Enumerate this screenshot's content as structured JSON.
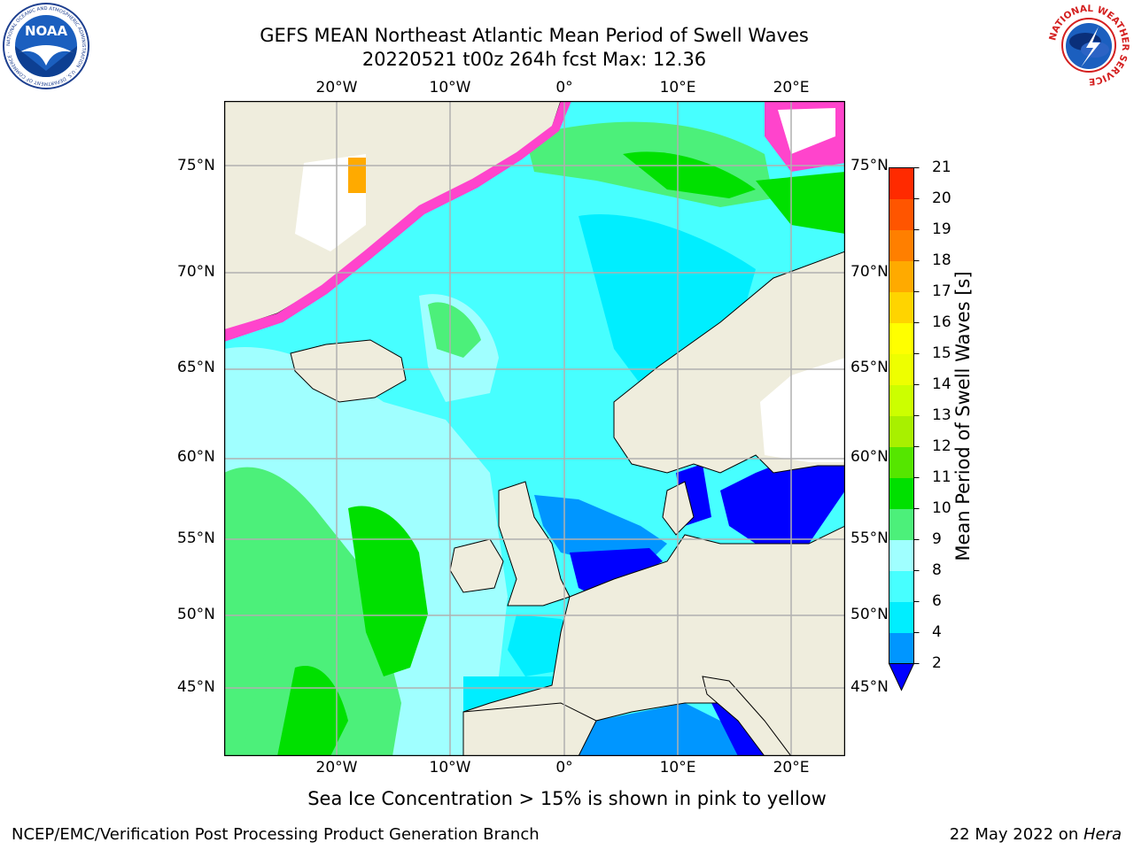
{
  "title": {
    "line1": "GEFS MEAN Northeast Atlantic Mean Period of Swell Waves",
    "line2": "20220521 t00z 264h fcst   Max: 12.36"
  },
  "logos": {
    "left": {
      "name": "noaa-logo",
      "text": "NOAA",
      "ring_text": "NATIONAL OCEANIC AND ATMOSPHERIC ADMINISTRATION · U.S. DEPARTMENT OF COMMERCE ·"
    },
    "right": {
      "name": "nws-logo",
      "ring_text": "NATIONAL WEATHER SERVICE"
    }
  },
  "map": {
    "lon_labels": [
      "20°W",
      "10°W",
      "0°",
      "10°E",
      "20°E"
    ],
    "lat_labels": [
      "75°N",
      "70°N",
      "65°N",
      "60°N",
      "55°N",
      "50°N",
      "45°N"
    ],
    "colors": {
      "land": "#efeddd",
      "ice_free_land": "#ffffff",
      "grid": "#b0b0b0",
      "coast": "#000000"
    }
  },
  "colorbar": {
    "label": "Mean Period of Swell Waves [s]",
    "ticks": [
      "2",
      "4",
      "6",
      "8",
      "9",
      "10",
      "11",
      "12",
      "13",
      "14",
      "15",
      "16",
      "17",
      "18",
      "19",
      "20",
      "21"
    ],
    "colors": [
      "#0000ff",
      "#0096ff",
      "#00eeff",
      "#47ffff",
      "#a0ffff",
      "#4cf07a",
      "#00e000",
      "#55e600",
      "#a8f000",
      "#ccff00",
      "#eeff00",
      "#ffff00",
      "#ffd400",
      "#ffaa00",
      "#ff7f00",
      "#ff5500",
      "#ff2a00"
    ],
    "extend_color": "#0000ff"
  },
  "note": "Sea Ice Concentration > 15% is shown in pink to yellow",
  "footer": {
    "left": "NCEP/EMC/Verification Post Processing Product Generation Branch",
    "right_date": "22 May 2022 on ",
    "right_host": "Hera"
  }
}
